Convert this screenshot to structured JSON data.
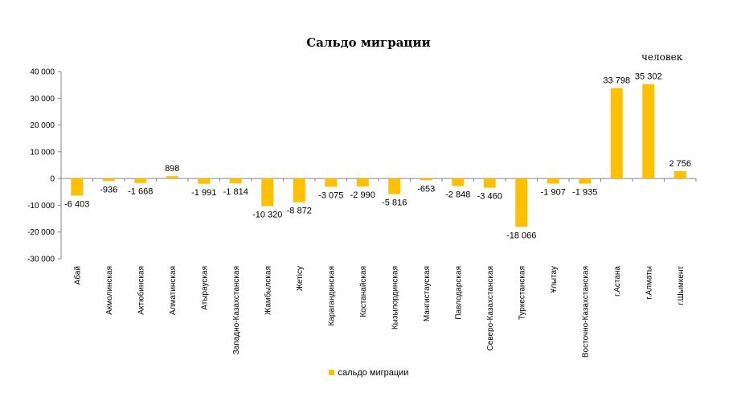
{
  "chart_data": {
    "type": "bar",
    "title": "Сальдо миграции",
    "unit": "человек",
    "ylim": [
      -30000,
      40000
    ],
    "y_ticks": [
      40000,
      30000,
      20000,
      10000,
      0,
      -10000,
      -20000,
      -30000
    ],
    "y_tick_labels": [
      "40 000",
      "30 000",
      "20 000",
      "10 000",
      "0",
      "-10 000",
      "-20 000",
      "-30 000"
    ],
    "grid": false,
    "legend_position": "bottom",
    "categories": [
      "Абай",
      "Акмолинская",
      "Актюбинская",
      "Алматинская",
      "Атырауская",
      "Западно-Казахстанская",
      "Жамбылская",
      "Жетісу",
      "Карагандинская",
      "Костанайская",
      "Кызылординская",
      "Мангистауская",
      "Павлодарская",
      "Северо-Казахстанская",
      "Туркестанская",
      "Ұлытау",
      "Восточно-Казахстанская",
      "г.Астана",
      "г.Алматы",
      "г.Шымкент"
    ],
    "series": [
      {
        "name": "сальдо миграции",
        "color": "#ffc000",
        "values": [
          -6403,
          -936,
          -1668,
          898,
          -1991,
          -1814,
          -10320,
          -8872,
          -3075,
          -2990,
          -5816,
          -653,
          -2848,
          -3460,
          -18066,
          -1907,
          -1935,
          33798,
          35302,
          2756
        ],
        "labels": [
          "-6 403",
          "-936",
          "-1 668",
          "898",
          "-1 991",
          "-1 814",
          "-10 320",
          "-8 872",
          "-3 075",
          "-2 990",
          "-5 816",
          "-653",
          "-2 848",
          "-3 460",
          "-18 066",
          "-1 907",
          "-1 935",
          "33 798",
          "35 302",
          "2 756"
        ]
      }
    ]
  }
}
